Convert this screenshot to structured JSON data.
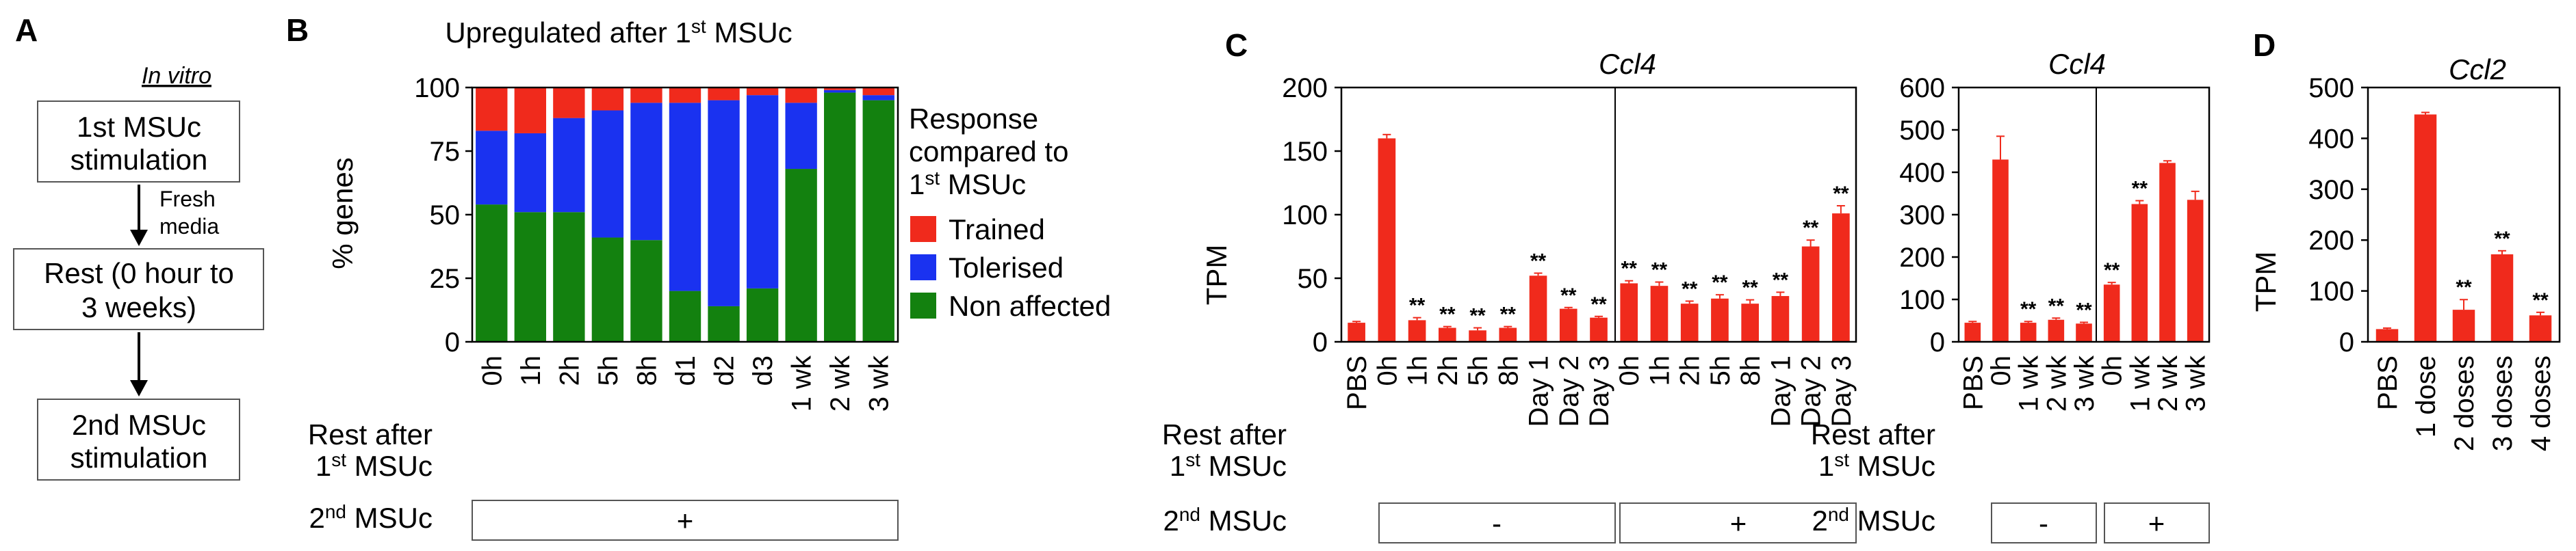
{
  "panels": {
    "a": "A",
    "b": "B",
    "c": "C",
    "d": "D"
  },
  "flow": {
    "title": "In vitro",
    "step1_line1": "1st MSUc",
    "step1_line2": "stimulation",
    "fresh_line1": "Fresh",
    "fresh_line2": "media",
    "step2_line1": "Rest (0 hour to",
    "step2_line2": "3 weeks)",
    "step3_line1": "2nd MSUc",
    "step3_line2": "stimulation"
  },
  "common": {
    "rest_after": "Rest after",
    "first_msuc_prefix": "1",
    "first_sup": "st",
    "msuc_word": " MSUc",
    "second_msuc_prefix": "2",
    "second_sup": "nd",
    "plus": "+",
    "minus": "-",
    "sig_mark": "**"
  },
  "colors": {
    "trained": "#f02a1c",
    "tolerised": "#1a32f0",
    "non_affected": "#13810f",
    "bar": "#f02a1c"
  },
  "chart_data": [
    {
      "id": "B",
      "type": "bar",
      "stacked": true,
      "title_prefix": "Upregulated after 1",
      "title_sup": "st",
      "title_suffix": " MSUc",
      "ylabel": "% genes",
      "ylim": [
        0,
        100
      ],
      "yticks": [
        "0",
        "25",
        "50",
        "75",
        "100"
      ],
      "categories": [
        "0h",
        "1h",
        "2h",
        "5h",
        "8h",
        "d1",
        "d2",
        "d3",
        "1 wk",
        "2 wk",
        "3 wk"
      ],
      "series": [
        {
          "name": "Non affected",
          "values": [
            54,
            51,
            51,
            41,
            40,
            20,
            14,
            21,
            68,
            98,
            95
          ]
        },
        {
          "name": "Tolerised",
          "values": [
            29,
            31,
            37,
            50,
            54,
            74,
            81,
            76,
            26,
            1,
            2
          ]
        },
        {
          "name": "Trained",
          "values": [
            17,
            18,
            12,
            9,
            6,
            6,
            5,
            3,
            6,
            1,
            3
          ]
        }
      ],
      "legend_title": [
        "Response",
        "compared to",
        "1st MSUc"
      ],
      "legend_title_line3_prefix": "1",
      "legend_title_line3_sup": "st",
      "legend_title_line3_suffix": " MSUc",
      "legend": [
        "Trained",
        "Tolerised",
        "Non affected"
      ],
      "second_msuc": "+"
    },
    {
      "id": "C1",
      "type": "bar",
      "title": "Ccl4",
      "ylabel": "TPM",
      "ylim": [
        0,
        200
      ],
      "yticks": [
        "0",
        "50",
        "100",
        "150",
        "200"
      ],
      "categories": [
        "PBS",
        "0h",
        "1h",
        "2h",
        "5h",
        "8h",
        "Day 1",
        "Day 2",
        "Day 3",
        "0h",
        "1h",
        "2h",
        "5h",
        "8h",
        "Day 1",
        "Day 2",
        "Day 3"
      ],
      "values": [
        15,
        160,
        17,
        11,
        9,
        11,
        52,
        26,
        19,
        46,
        44,
        30,
        34,
        30,
        36,
        75,
        101
      ],
      "errors": [
        1,
        3,
        2,
        1,
        2,
        1,
        2,
        1,
        1,
        2,
        3,
        2,
        3,
        3,
        3,
        5,
        6
      ],
      "significance": [
        "",
        "",
        "**",
        "**",
        "**",
        "**",
        "**",
        "**",
        "**",
        "**",
        "**",
        "**",
        "**",
        "**",
        "**",
        "**",
        "**"
      ],
      "second_msuc_groups": [
        {
          "label": "-",
          "count": 9
        },
        {
          "label": "+",
          "count": 8
        }
      ]
    },
    {
      "id": "C2",
      "type": "bar",
      "title": "Ccl4",
      "ylim": [
        0,
        600
      ],
      "yticks": [
        "0",
        "100",
        "200",
        "300",
        "400",
        "500",
        "600"
      ],
      "categories": [
        "PBS",
        "0h",
        "1 wk",
        "2 wk",
        "3 wk",
        "0h",
        "1 wk",
        "2 wk",
        "3 wk"
      ],
      "values": [
        45,
        430,
        45,
        52,
        43,
        135,
        325,
        422,
        335
      ],
      "errors": [
        3,
        55,
        3,
        4,
        3,
        5,
        8,
        5,
        20
      ],
      "significance": [
        "",
        "",
        "**",
        "**",
        "**",
        "**",
        "**",
        "",
        ""
      ],
      "second_msuc_groups": [
        {
          "label": "-",
          "count": 5
        },
        {
          "label": "+",
          "count": 4
        }
      ]
    },
    {
      "id": "D",
      "type": "bar",
      "title": "Ccl2",
      "ylabel": "TPM",
      "ylim": [
        0,
        500
      ],
      "yticks": [
        "0",
        "100",
        "200",
        "300",
        "400",
        "500"
      ],
      "categories": [
        "PBS",
        "1 dose",
        "2 doses",
        "3 doses",
        "4 doses"
      ],
      "values": [
        25,
        447,
        63,
        172,
        52
      ],
      "errors": [
        2,
        4,
        20,
        7,
        6
      ],
      "significance": [
        "",
        "",
        "**",
        "**",
        "**"
      ]
    }
  ]
}
